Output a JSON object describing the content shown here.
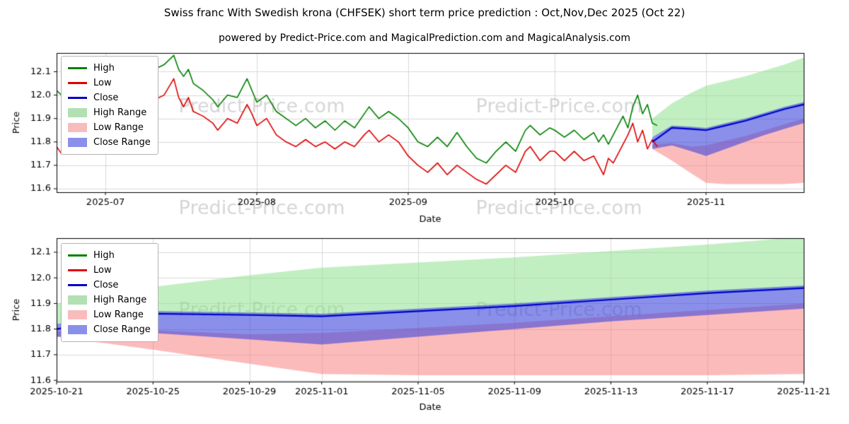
{
  "title": "Swiss franc With Swedish krona (CHFSEK) short term price prediction : Oct,Nov,Dec 2025 (Oct 22)",
  "subtitle": "powered by Predict-Price.com and MagicalPrediction.com and MagicalAnalysis.com",
  "watermark": "Predict-Price.com",
  "colors": {
    "high": "#008000",
    "low": "#e00000",
    "close": "#0000cd",
    "high_range": "rgba(144,225,144,0.55)",
    "low_range": "rgba(250,120,120,0.5)",
    "close_range": "rgba(60,70,220,0.6)",
    "grid": "#d9d9d9",
    "watermark_color": "rgba(128,128,128,0.32)"
  },
  "legend": {
    "items": [
      {
        "label": "High",
        "swatch": "line",
        "color": "#008000"
      },
      {
        "label": "Low",
        "swatch": "line",
        "color": "#e00000"
      },
      {
        "label": "Close",
        "swatch": "line",
        "color": "#0000cd"
      },
      {
        "label": "High Range",
        "swatch": "fill",
        "color": "#b2e0b2"
      },
      {
        "label": "Low Range",
        "swatch": "fill",
        "color": "#f9bcbc"
      },
      {
        "label": "Close Range",
        "swatch": "fill",
        "color": "#8a90ea"
      }
    ]
  },
  "chart_data": [
    {
      "type": "line",
      "xlabel": "Date",
      "ylabel": "Price",
      "x_unit": "days from 2025-06-21",
      "xlim": [
        0,
        153
      ],
      "ylim": [
        11.585,
        12.18
      ],
      "yticks": [
        11.6,
        11.7,
        11.8,
        11.9,
        12.0,
        12.1
      ],
      "xticks": [
        {
          "pos": 10,
          "label": "2025-07"
        },
        {
          "pos": 41,
          "label": "2025-08"
        },
        {
          "pos": 72,
          "label": "2025-09"
        },
        {
          "pos": 102,
          "label": "2025-10"
        },
        {
          "pos": 133,
          "label": "2025-11"
        }
      ],
      "series": {
        "high": [
          [
            0,
            12.02
          ],
          [
            1,
            12.0
          ],
          [
            3,
            11.97
          ],
          [
            4,
            11.99
          ],
          [
            5,
            11.96
          ],
          [
            7,
            12.01
          ],
          [
            9,
            11.99
          ],
          [
            10,
            12.0
          ],
          [
            12,
            12.04
          ],
          [
            14,
            12.02
          ],
          [
            16,
            12.08
          ],
          [
            18,
            12.12
          ],
          [
            19,
            12.08
          ],
          [
            20,
            12.11
          ],
          [
            22,
            12.13
          ],
          [
            24,
            12.17
          ],
          [
            25,
            12.11
          ],
          [
            26,
            12.08
          ],
          [
            27,
            12.11
          ],
          [
            28,
            12.05
          ],
          [
            30,
            12.02
          ],
          [
            32,
            11.98
          ],
          [
            33,
            11.95
          ],
          [
            35,
            12.0
          ],
          [
            37,
            11.99
          ],
          [
            39,
            12.07
          ],
          [
            40,
            12.02
          ],
          [
            41,
            11.97
          ],
          [
            43,
            12.0
          ],
          [
            45,
            11.93
          ],
          [
            47,
            11.9
          ],
          [
            49,
            11.87
          ],
          [
            51,
            11.9
          ],
          [
            53,
            11.86
          ],
          [
            55,
            11.89
          ],
          [
            57,
            11.85
          ],
          [
            59,
            11.89
          ],
          [
            61,
            11.86
          ],
          [
            63,
            11.92
          ],
          [
            64,
            11.95
          ],
          [
            66,
            11.9
          ],
          [
            68,
            11.93
          ],
          [
            70,
            11.9
          ],
          [
            72,
            11.86
          ],
          [
            74,
            11.8
          ],
          [
            76,
            11.78
          ],
          [
            78,
            11.82
          ],
          [
            80,
            11.78
          ],
          [
            82,
            11.84
          ],
          [
            84,
            11.78
          ],
          [
            86,
            11.73
          ],
          [
            88,
            11.71
          ],
          [
            90,
            11.76
          ],
          [
            92,
            11.8
          ],
          [
            94,
            11.76
          ],
          [
            96,
            11.85
          ],
          [
            97,
            11.87
          ],
          [
            99,
            11.83
          ],
          [
            101,
            11.86
          ],
          [
            102,
            11.85
          ],
          [
            104,
            11.82
          ],
          [
            106,
            11.85
          ],
          [
            108,
            11.81
          ],
          [
            110,
            11.84
          ],
          [
            111,
            11.8
          ],
          [
            112,
            11.83
          ],
          [
            113,
            11.79
          ],
          [
            114,
            11.83
          ],
          [
            115,
            11.87
          ],
          [
            116,
            11.91
          ],
          [
            117,
            11.86
          ],
          [
            118,
            11.95
          ],
          [
            119,
            12.0
          ],
          [
            120,
            11.92
          ],
          [
            121,
            11.96
          ],
          [
            122,
            11.88
          ],
          [
            123,
            11.87
          ]
        ],
        "low": [
          [
            0,
            11.78
          ],
          [
            1,
            11.75
          ],
          [
            2,
            11.81
          ],
          [
            3,
            11.77
          ],
          [
            5,
            11.83
          ],
          [
            7,
            11.88
          ],
          [
            9,
            11.86
          ],
          [
            10,
            11.87
          ],
          [
            12,
            11.91
          ],
          [
            14,
            11.89
          ],
          [
            16,
            11.95
          ],
          [
            18,
            11.99
          ],
          [
            19,
            11.95
          ],
          [
            20,
            11.98
          ],
          [
            22,
            12.0
          ],
          [
            24,
            12.07
          ],
          [
            25,
            11.99
          ],
          [
            26,
            11.95
          ],
          [
            27,
            11.99
          ],
          [
            28,
            11.93
          ],
          [
            30,
            11.91
          ],
          [
            32,
            11.88
          ],
          [
            33,
            11.85
          ],
          [
            35,
            11.9
          ],
          [
            37,
            11.88
          ],
          [
            39,
            11.96
          ],
          [
            40,
            11.92
          ],
          [
            41,
            11.87
          ],
          [
            43,
            11.9
          ],
          [
            45,
            11.83
          ],
          [
            47,
            11.8
          ],
          [
            49,
            11.78
          ],
          [
            51,
            11.81
          ],
          [
            53,
            11.78
          ],
          [
            55,
            11.8
          ],
          [
            57,
            11.77
          ],
          [
            59,
            11.8
          ],
          [
            61,
            11.78
          ],
          [
            63,
            11.83
          ],
          [
            64,
            11.85
          ],
          [
            66,
            11.8
          ],
          [
            68,
            11.83
          ],
          [
            70,
            11.8
          ],
          [
            72,
            11.74
          ],
          [
            74,
            11.7
          ],
          [
            76,
            11.67
          ],
          [
            78,
            11.71
          ],
          [
            80,
            11.66
          ],
          [
            82,
            11.7
          ],
          [
            84,
            11.67
          ],
          [
            86,
            11.64
          ],
          [
            88,
            11.62
          ],
          [
            90,
            11.66
          ],
          [
            92,
            11.7
          ],
          [
            94,
            11.67
          ],
          [
            96,
            11.76
          ],
          [
            97,
            11.78
          ],
          [
            99,
            11.72
          ],
          [
            101,
            11.76
          ],
          [
            102,
            11.76
          ],
          [
            104,
            11.72
          ],
          [
            106,
            11.76
          ],
          [
            108,
            11.72
          ],
          [
            110,
            11.74
          ],
          [
            111,
            11.7
          ],
          [
            112,
            11.66
          ],
          [
            113,
            11.73
          ],
          [
            114,
            11.71
          ],
          [
            115,
            11.75
          ],
          [
            116,
            11.79
          ],
          [
            117,
            11.83
          ],
          [
            118,
            11.88
          ],
          [
            119,
            11.8
          ],
          [
            120,
            11.85
          ],
          [
            121,
            11.77
          ],
          [
            122,
            11.81
          ],
          [
            123,
            11.78
          ]
        ]
      },
      "forecast": {
        "x": [
          122,
          126,
          130,
          133,
          137,
          141,
          145,
          149,
          153
        ],
        "dates": [
          "2025-10-21",
          "2025-10-25",
          "2025-10-29",
          "2025-11-01",
          "2025-11-05",
          "2025-11-09",
          "2025-11-13",
          "2025-11-17",
          "2025-11-21"
        ],
        "close": [
          11.8,
          11.86,
          11.855,
          11.85,
          11.87,
          11.89,
          11.915,
          11.94,
          11.96
        ],
        "close_upper": [
          11.82,
          11.87,
          11.865,
          11.86,
          11.88,
          11.9,
          11.925,
          11.95,
          11.97
        ],
        "close_lower": [
          11.77,
          11.785,
          11.76,
          11.74,
          11.77,
          11.8,
          11.83,
          11.855,
          11.88
        ],
        "high_upper": [
          11.9,
          11.965,
          12.01,
          12.04,
          12.06,
          12.08,
          12.105,
          12.13,
          12.16
        ],
        "high_lower": [
          11.82,
          11.86,
          11.855,
          11.85,
          11.87,
          11.89,
          11.915,
          11.94,
          11.955
        ],
        "low_upper": [
          11.79,
          11.795,
          11.78,
          11.785,
          11.805,
          11.825,
          11.85,
          11.875,
          11.9
        ],
        "low_lower": [
          11.77,
          11.72,
          11.665,
          11.625,
          11.62,
          11.62,
          11.62,
          11.62,
          11.625
        ]
      }
    },
    {
      "type": "area",
      "xlabel": "Date",
      "ylabel": "Price",
      "x_unit": "days from 2025-06-21",
      "xlim": [
        122,
        153
      ],
      "ylim": [
        11.595,
        12.155
      ],
      "yticks": [
        11.6,
        11.7,
        11.8,
        11.9,
        12.0,
        12.1
      ],
      "xticks": [
        {
          "pos": 122,
          "label": "2025-10-21"
        },
        {
          "pos": 126,
          "label": "2025-10-25"
        },
        {
          "pos": 130,
          "label": "2025-10-29"
        },
        {
          "pos": 133,
          "label": "2025-11-01"
        },
        {
          "pos": 137,
          "label": "2025-11-05"
        },
        {
          "pos": 141,
          "label": "2025-11-09"
        },
        {
          "pos": 145,
          "label": "2025-11-13"
        },
        {
          "pos": 149,
          "label": "2025-11-17"
        },
        {
          "pos": 153,
          "label": "2025-11-21"
        }
      ],
      "forecast": {
        "x": [
          122,
          126,
          130,
          133,
          137,
          141,
          145,
          149,
          153
        ],
        "dates": [
          "2025-10-21",
          "2025-10-25",
          "2025-10-29",
          "2025-11-01",
          "2025-11-05",
          "2025-11-09",
          "2025-11-13",
          "2025-11-17",
          "2025-11-21"
        ],
        "close": [
          11.8,
          11.86,
          11.855,
          11.85,
          11.87,
          11.89,
          11.915,
          11.94,
          11.96
        ],
        "close_upper": [
          11.82,
          11.87,
          11.865,
          11.86,
          11.88,
          11.9,
          11.925,
          11.95,
          11.97
        ],
        "close_lower": [
          11.77,
          11.785,
          11.76,
          11.74,
          11.77,
          11.8,
          11.83,
          11.855,
          11.88
        ],
        "high_upper": [
          11.9,
          11.965,
          12.01,
          12.04,
          12.06,
          12.08,
          12.105,
          12.13,
          12.16
        ],
        "high_lower": [
          11.82,
          11.86,
          11.855,
          11.85,
          11.87,
          11.89,
          11.915,
          11.94,
          11.955
        ],
        "low_upper": [
          11.79,
          11.795,
          11.78,
          11.785,
          11.805,
          11.825,
          11.85,
          11.875,
          11.9
        ],
        "low_lower": [
          11.77,
          11.72,
          11.665,
          11.625,
          11.62,
          11.62,
          11.62,
          11.62,
          11.625
        ]
      }
    }
  ]
}
